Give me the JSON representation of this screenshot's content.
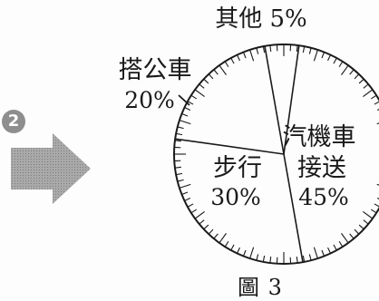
{
  "step": {
    "badge": "2"
  },
  "chart_data": {
    "type": "pie",
    "categories": [
      "汽機車接送",
      "步行",
      "搭公車",
      "其他"
    ],
    "values": [
      45,
      30,
      20,
      5
    ],
    "labels": {
      "car": [
        "汽機車",
        "接送",
        "45%"
      ],
      "walk": [
        "步行",
        "30%"
      ],
      "bus": [
        "搭公車",
        "20%"
      ],
      "other": "其他 5%"
    },
    "caption": "圖 3"
  }
}
